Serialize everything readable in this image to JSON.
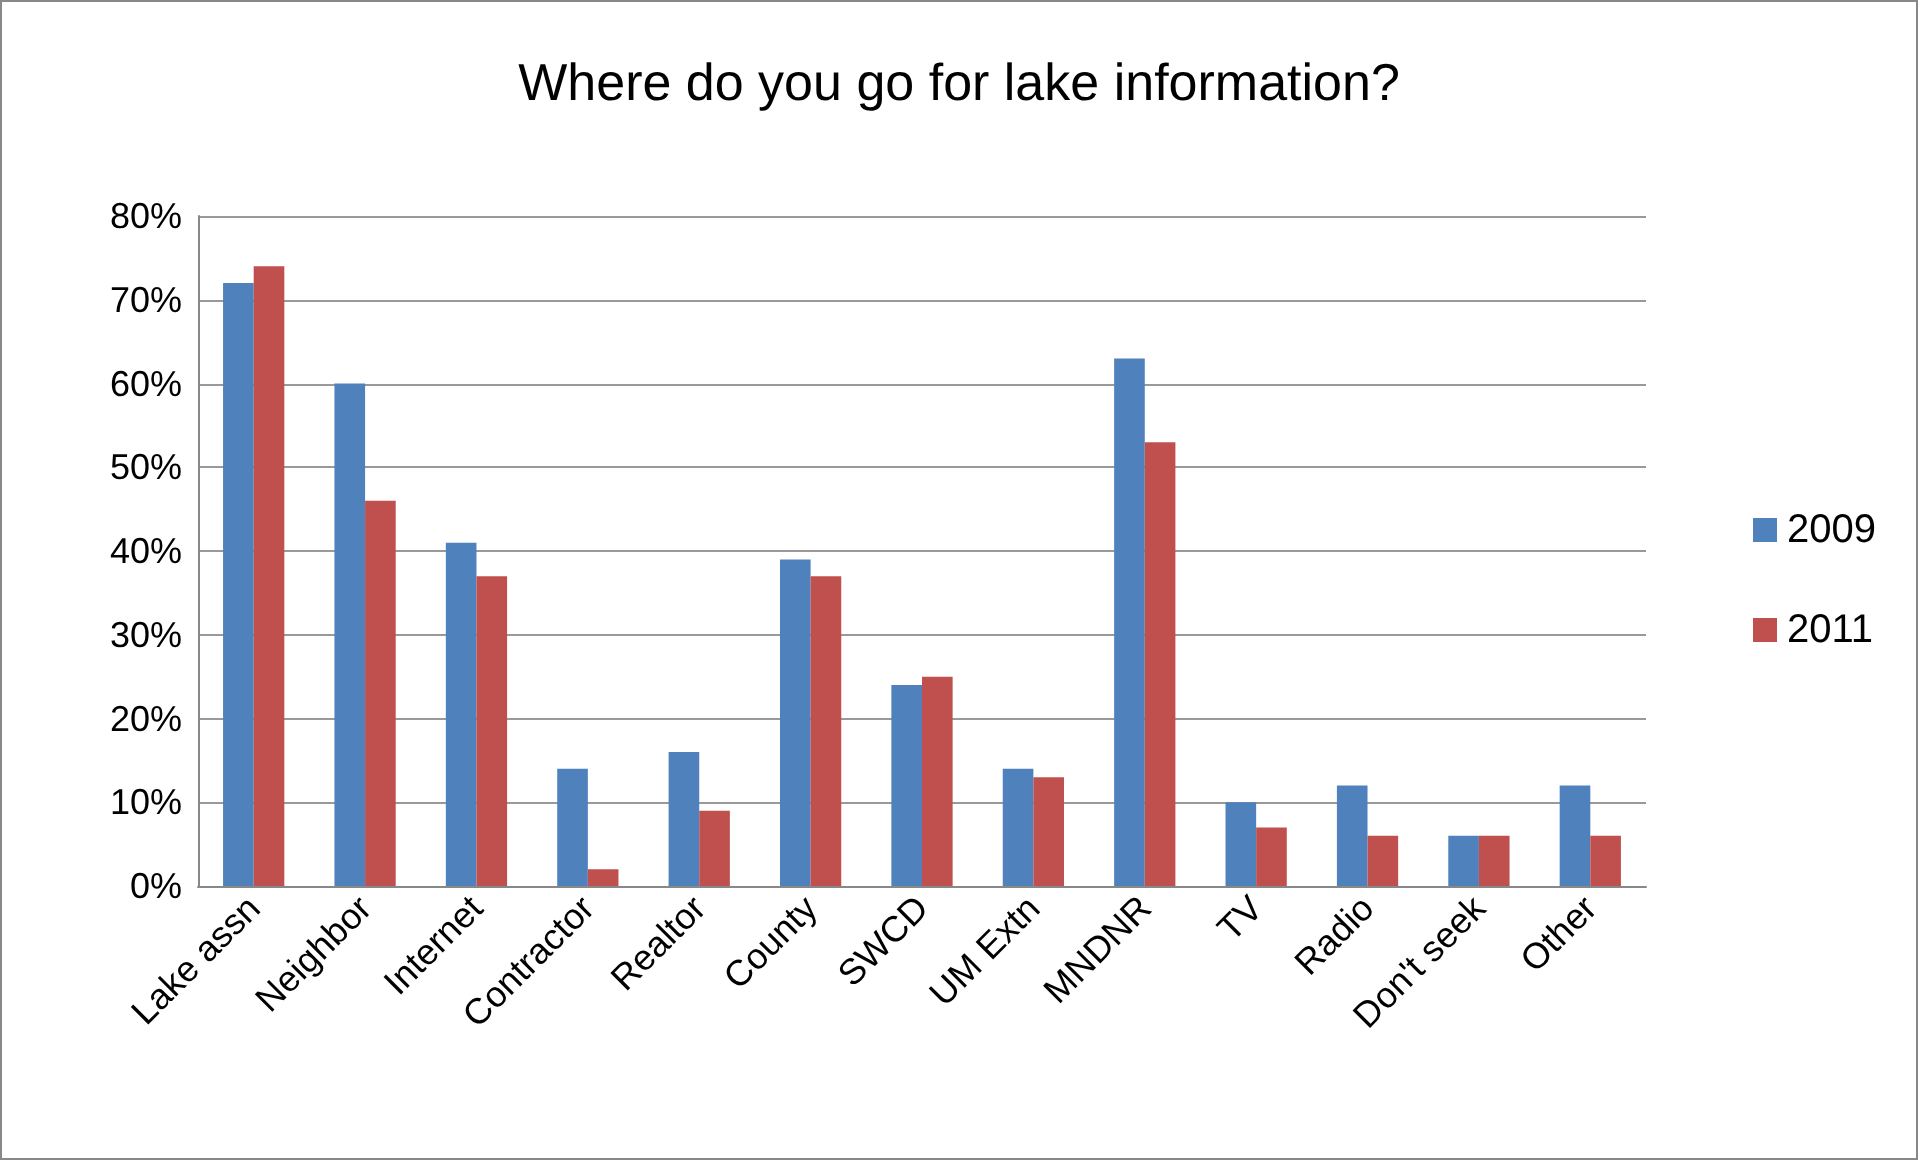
{
  "chart_data": {
    "type": "bar",
    "title": "Where do you go for lake information?",
    "categories": [
      "Lake assn",
      "Neighbor",
      "Internet",
      "Contractor",
      "Realtor",
      "County",
      "SWCD",
      "UM Extn",
      "MNDNR",
      "TV",
      "Radio",
      "Don't seek",
      "Other"
    ],
    "series": [
      {
        "name": "2009",
        "color": "#4f81bd",
        "values": [
          72,
          60,
          41,
          14,
          16,
          39,
          24,
          14,
          63,
          10,
          12,
          6,
          12
        ]
      },
      {
        "name": "2011",
        "color": "#c0504d",
        "values": [
          74,
          46,
          37,
          2,
          9,
          37,
          25,
          13,
          53,
          7,
          6,
          6,
          6
        ]
      }
    ],
    "ylim": [
      0,
      80
    ],
    "yticks": [
      {
        "value": 0,
        "label": "0%"
      },
      {
        "value": 10,
        "label": "10%"
      },
      {
        "value": 20,
        "label": "20%"
      },
      {
        "value": 30,
        "label": "30%"
      },
      {
        "value": 40,
        "label": "40%"
      },
      {
        "value": 50,
        "label": "50%"
      },
      {
        "value": 60,
        "label": "60%"
      },
      {
        "value": 70,
        "label": "70%"
      },
      {
        "value": 80,
        "label": "80%"
      }
    ],
    "grid": "y",
    "legend": "right"
  }
}
